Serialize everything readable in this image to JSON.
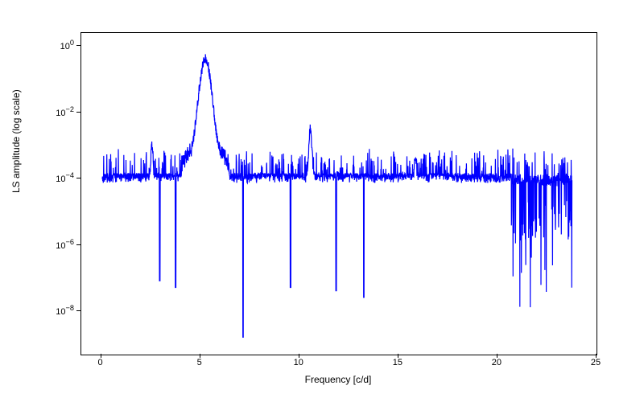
{
  "chart": {
    "type": "line",
    "xlabel": "Frequency [c/d]",
    "ylabel": "LS amplitude (log scale)",
    "xlim": [
      -1,
      25
    ],
    "ylim_log10": [
      -9.3,
      0.4
    ],
    "xtick_positions": [
      0,
      5,
      10,
      15,
      20,
      25
    ],
    "xtick_labels": [
      "0",
      "5",
      "10",
      "15",
      "20",
      "25"
    ],
    "ytick_exponents": [
      -8,
      -6,
      -4,
      -2,
      0
    ],
    "line_color": "#0000ff",
    "line_width": 1.2,
    "background_color": "#ffffff",
    "border_color": "#000000",
    "label_fontsize": 12,
    "tick_fontsize": 11,
    "xdata_min": 0.1,
    "xdata_max": 23.8,
    "noise_floor_log10": -4.0,
    "noise_spread_log10": 1.3,
    "peaks": [
      {
        "freq": 5.3,
        "amp_log10": -0.4,
        "width": 0.4
      },
      {
        "freq": 2.6,
        "amp_log10": -3.0,
        "width": 0.05
      },
      {
        "freq": 10.6,
        "amp_log10": -2.5,
        "width": 0.08
      },
      {
        "freq": 15.9,
        "amp_log10": -3.3,
        "width": 0.05
      }
    ],
    "deep_dips": [
      {
        "freq": 7.2,
        "amp_log10": -8.8
      },
      {
        "freq": 9.6,
        "amp_log10": -7.3
      },
      {
        "freq": 11.9,
        "amp_log10": -7.4
      },
      {
        "freq": 13.3,
        "amp_log10": -7.6
      },
      {
        "freq": 3.0,
        "amp_log10": -7.1
      },
      {
        "freq": 3.8,
        "amp_log10": -7.3
      }
    ],
    "n_points": 2400,
    "rng_seed": 42
  }
}
